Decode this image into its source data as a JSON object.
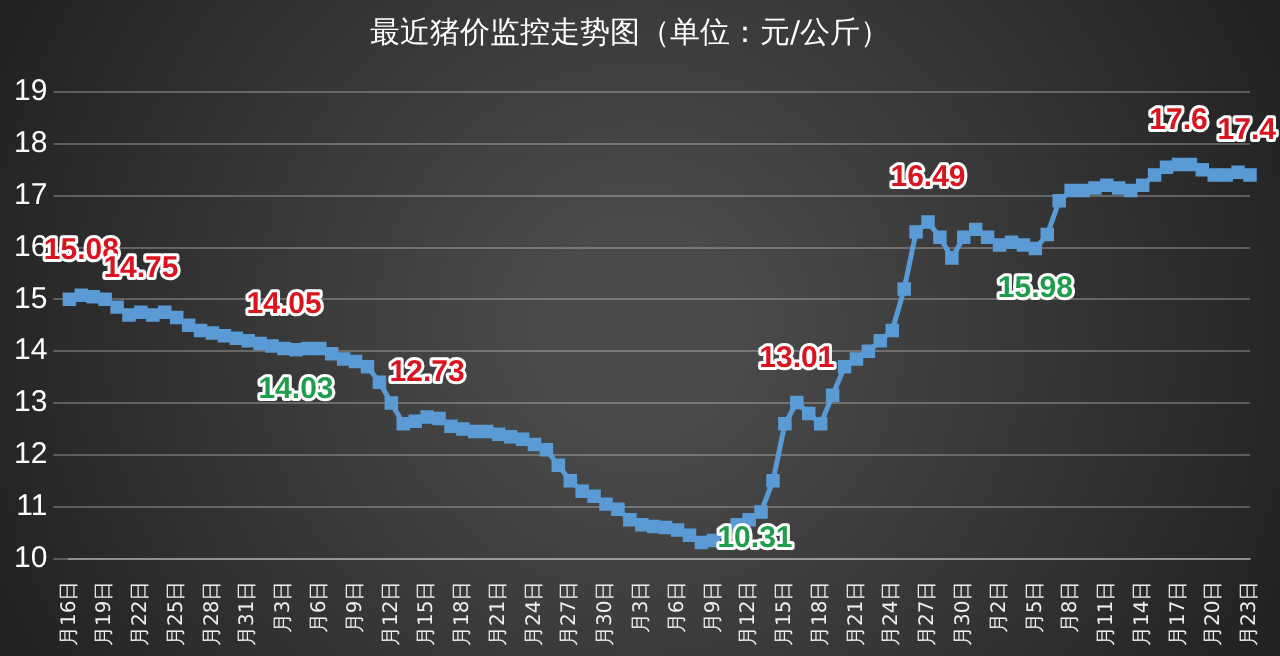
{
  "chart_data": {
    "type": "line",
    "title": "最近猪价监控走势图（单位：元/公斤）",
    "categories": [
      "月16日",
      null,
      null,
      "月19日",
      null,
      null,
      "月22日",
      null,
      null,
      "月25日",
      null,
      null,
      "月28日",
      null,
      null,
      "月31日",
      null,
      null,
      "月3日",
      null,
      null,
      "月6日",
      null,
      null,
      "月9日",
      null,
      null,
      "月12日",
      null,
      null,
      "月15日",
      null,
      null,
      "月18日",
      null,
      null,
      "月21日",
      null,
      null,
      "月24日",
      null,
      null,
      "月27日",
      null,
      null,
      "月30日",
      null,
      null,
      "月3日",
      null,
      null,
      "月6日",
      null,
      null,
      "月9日",
      null,
      null,
      "月12日",
      null,
      null,
      "月15日",
      null,
      null,
      "月18日",
      null,
      null,
      "月21日",
      null,
      null,
      "月24日",
      null,
      null,
      "月27日",
      null,
      null,
      "月30日",
      null,
      null,
      "月2日",
      null,
      null,
      "月5日",
      null,
      null,
      "月8日",
      null,
      null,
      "月11日",
      null,
      null,
      "月14日",
      null,
      null,
      "月17日",
      null,
      null,
      "月20日",
      null,
      null,
      "月23日"
    ],
    "series": [
      {
        "color": "#5b9bd5",
        "values": [
          15.0,
          15.08,
          15.05,
          15.0,
          14.85,
          14.7,
          14.75,
          14.7,
          14.75,
          14.65,
          14.5,
          14.4,
          14.35,
          14.3,
          14.25,
          14.2,
          14.15,
          14.1,
          14.05,
          14.03,
          14.05,
          14.05,
          13.95,
          13.85,
          13.8,
          13.7,
          13.4,
          13.0,
          12.6,
          12.65,
          12.73,
          12.7,
          12.55,
          12.5,
          12.45,
          12.45,
          12.4,
          12.35,
          12.3,
          12.2,
          12.1,
          11.8,
          11.5,
          11.3,
          11.2,
          11.05,
          10.95,
          10.75,
          10.65,
          10.62,
          10.6,
          10.55,
          10.45,
          10.31,
          10.35,
          10.5,
          10.65,
          10.75,
          10.9,
          11.5,
          12.6,
          13.01,
          12.8,
          12.6,
          13.15,
          13.7,
          13.85,
          14.0,
          14.2,
          14.4,
          15.2,
          16.3,
          16.49,
          16.2,
          15.8,
          16.2,
          16.35,
          16.2,
          16.05,
          16.1,
          16.05,
          15.98,
          16.25,
          16.9,
          17.1,
          17.1,
          17.15,
          17.2,
          17.15,
          17.1,
          17.2,
          17.4,
          17.55,
          17.6,
          17.6,
          17.5,
          17.4,
          17.4,
          17.45,
          17.4
        ],
        "value_labels": [
          null,
          "15.08",
          null,
          null,
          null,
          null,
          "14.75",
          null,
          null,
          null,
          null,
          null,
          null,
          null,
          null,
          null,
          null,
          null,
          "14.05",
          "14.03",
          null,
          null,
          null,
          null,
          null,
          null,
          null,
          null,
          null,
          null,
          "12.73",
          null,
          null,
          null,
          null,
          null,
          null,
          null,
          null,
          null,
          null,
          null,
          null,
          null,
          null,
          null,
          null,
          null,
          null,
          null,
          null,
          null,
          null,
          "10.31",
          null,
          null,
          null,
          null,
          null,
          null,
          null,
          "13.01",
          null,
          null,
          null,
          null,
          null,
          null,
          null,
          null,
          null,
          null,
          "16.49",
          null,
          null,
          null,
          null,
          null,
          null,
          null,
          null,
          "15.98",
          null,
          null,
          null,
          null,
          null,
          null,
          null,
          null,
          null,
          null,
          null,
          "17.6",
          null,
          null,
          null,
          null,
          null,
          "17.4"
        ]
      }
    ],
    "ylim": [
      10,
      19
    ],
    "yticks": [
      10,
      11,
      12,
      13,
      14,
      15,
      16,
      17,
      18,
      19
    ],
    "grid": "y",
    "marker": "square",
    "line_style": "solid",
    "legend": false
  }
}
